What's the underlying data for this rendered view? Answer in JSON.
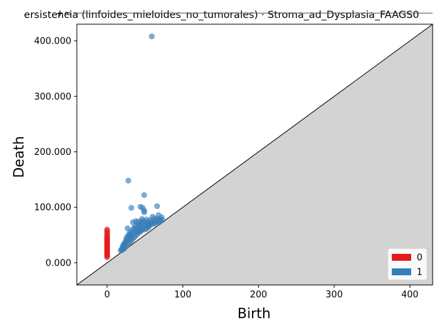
{
  "chart_data": {
    "type": "scatter",
    "title": "ersistencia (linfoides_mieloides_no_tumorales) · Stroma_ad_Dysplasia_FAAGS0",
    "xlabel": "Birth",
    "ylabel": "Death",
    "xlim": [
      -40,
      430
    ],
    "ylim": [
      -40,
      430
    ],
    "x_ticks": [
      0,
      100,
      200,
      300,
      400
    ],
    "x_tick_labels": [
      "0",
      "100",
      "200",
      "300",
      "400"
    ],
    "y_ticks": [
      0,
      100,
      200,
      300,
      400
    ],
    "y_tick_labels": [
      "0.000",
      "100.000",
      "200.000",
      "300.000",
      "400.000"
    ],
    "infinity_level": 450,
    "infinity_label": "+∞",
    "diagonal": true,
    "legend_position": "lower-right",
    "series": [
      {
        "name": "0",
        "color": "#e41a1c",
        "points": [
          [
            0,
            450
          ],
          [
            0,
            60
          ],
          [
            0,
            57
          ],
          [
            0,
            54
          ],
          [
            0,
            51
          ],
          [
            0,
            48
          ],
          [
            0,
            46
          ],
          [
            0,
            44
          ],
          [
            0,
            42
          ],
          [
            0,
            40
          ],
          [
            0,
            38
          ],
          [
            0,
            36
          ],
          [
            0,
            34
          ],
          [
            0,
            32
          ],
          [
            0,
            30
          ],
          [
            0,
            28
          ],
          [
            0,
            26
          ],
          [
            0,
            24
          ],
          [
            0,
            22
          ],
          [
            0,
            20
          ],
          [
            0,
            18
          ],
          [
            0,
            16
          ],
          [
            0,
            14
          ],
          [
            0,
            12
          ],
          [
            0,
            10
          ]
        ]
      },
      {
        "name": "1",
        "color": "#377eb8",
        "points": [
          [
            59,
            408
          ],
          [
            28,
            148
          ],
          [
            49,
            122
          ],
          [
            32,
            99
          ],
          [
            44,
            101
          ],
          [
            47,
            99
          ],
          [
            66,
            102
          ],
          [
            49,
            94
          ],
          [
            49,
            91
          ],
          [
            27,
            62
          ],
          [
            34,
            73
          ],
          [
            38,
            75
          ],
          [
            41,
            74
          ],
          [
            46,
            79
          ],
          [
            52,
            78
          ],
          [
            60,
            83
          ],
          [
            68,
            86
          ],
          [
            72,
            82
          ],
          [
            70,
            78
          ],
          [
            64,
            76
          ],
          [
            58,
            74
          ],
          [
            55,
            70
          ],
          [
            50,
            72
          ],
          [
            45,
            68
          ],
          [
            42,
            64
          ],
          [
            40,
            60
          ],
          [
            38,
            57
          ],
          [
            36,
            54
          ],
          [
            33,
            50
          ],
          [
            31,
            47
          ],
          [
            29,
            44
          ],
          [
            27,
            41
          ],
          [
            25,
            38
          ],
          [
            24,
            35
          ],
          [
            22,
            32
          ],
          [
            21,
            29
          ],
          [
            20,
            26
          ],
          [
            19,
            24
          ],
          [
            18,
            22
          ],
          [
            20,
            23
          ],
          [
            22,
            25
          ],
          [
            24,
            28
          ],
          [
            26,
            31
          ],
          [
            28,
            34
          ],
          [
            30,
            37
          ],
          [
            32,
            40
          ],
          [
            34,
            43
          ],
          [
            36,
            46
          ],
          [
            38,
            49
          ],
          [
            40,
            52
          ],
          [
            42,
            55
          ],
          [
            44,
            58
          ],
          [
            46,
            61
          ],
          [
            48,
            64
          ],
          [
            50,
            67
          ],
          [
            52,
            62
          ],
          [
            54,
            66
          ],
          [
            56,
            68
          ],
          [
            58,
            71
          ],
          [
            62,
            72
          ],
          [
            66,
            74
          ],
          [
            70,
            76
          ],
          [
            35,
            62
          ],
          [
            30,
            55
          ],
          [
            28,
            50
          ],
          [
            26,
            46
          ],
          [
            33,
            58
          ],
          [
            37,
            66
          ],
          [
            43,
            70
          ],
          [
            48,
            75
          ],
          [
            53,
            73
          ],
          [
            57,
            77
          ],
          [
            63,
            80
          ],
          [
            67,
            79
          ],
          [
            45,
            74
          ],
          [
            41,
            69
          ],
          [
            39,
            63
          ],
          [
            31,
            52
          ],
          [
            29,
            48
          ],
          [
            25,
            42
          ],
          [
            23,
            36
          ],
          [
            21,
            31
          ],
          [
            44,
            56
          ],
          [
            47,
            59
          ],
          [
            51,
            60
          ],
          [
            55,
            64
          ],
          [
            60,
            69
          ],
          [
            65,
            70
          ],
          [
            69,
            73
          ],
          [
            73,
            77
          ]
        ]
      }
    ]
  }
}
